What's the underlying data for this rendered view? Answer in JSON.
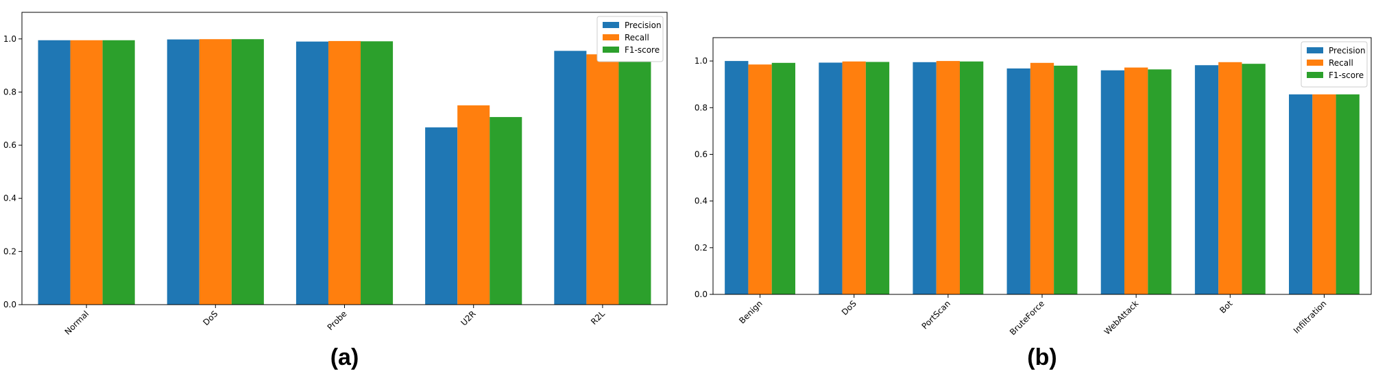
{
  "chart_data": [
    {
      "type": "bar",
      "label": "(a)",
      "categories": [
        "Normal",
        "DoS",
        "Probe",
        "U2R",
        "R2L"
      ],
      "series": [
        {
          "name": "Precision",
          "color": "#1f77b4",
          "values": [
            0.995,
            0.998,
            0.99,
            0.667,
            0.955
          ]
        },
        {
          "name": "Recall",
          "color": "#ff7f0e",
          "values": [
            0.995,
            0.999,
            0.992,
            0.75,
            0.942
          ]
        },
        {
          "name": "F1-score",
          "color": "#2ca02c",
          "values": [
            0.995,
            0.999,
            0.991,
            0.706,
            0.948
          ]
        }
      ],
      "ylim": [
        0,
        1.1
      ],
      "yticks": [
        {
          "value": 0,
          "label": "0.0"
        },
        0.2,
        0.4,
        0.6,
        0.8,
        {
          "value": 1,
          "label": "1.0"
        }
      ],
      "legend": "upper right"
    },
    {
      "type": "bar",
      "label": "(b)",
      "categories": [
        "Benign",
        "DoS",
        "PortScan",
        "BruteForce",
        "WebAttack",
        "Bot",
        "Infiltration"
      ],
      "series": [
        {
          "name": "Precision",
          "color": "#1f77b4",
          "values": [
            1.0,
            0.993,
            0.995,
            0.968,
            0.96,
            0.982,
            0.857
          ]
        },
        {
          "name": "Recall",
          "color": "#ff7f0e",
          "values": [
            0.985,
            0.998,
            1.0,
            0.992,
            0.972,
            0.995,
            0.857
          ]
        },
        {
          "name": "F1-score",
          "color": "#2ca02c",
          "values": [
            0.992,
            0.996,
            0.998,
            0.98,
            0.964,
            0.988,
            0.857
          ]
        }
      ],
      "ylim": [
        0,
        1.1
      ],
      "yticks": [
        {
          "value": 0,
          "label": "0.0"
        },
        0.2,
        0.4,
        0.6,
        0.8,
        {
          "value": 1,
          "label": "1.0"
        }
      ],
      "legend": "upper right"
    }
  ]
}
